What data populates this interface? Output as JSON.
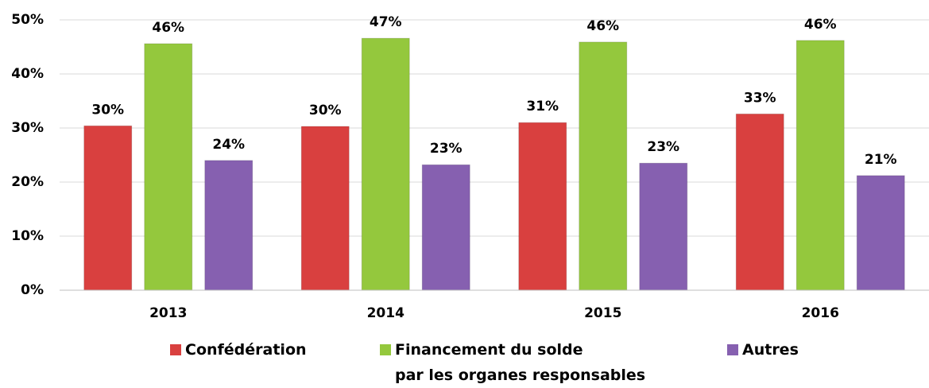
{
  "chart_data": {
    "type": "bar",
    "categories": [
      "2013",
      "2014",
      "2015",
      "2016"
    ],
    "series": [
      {
        "name": "Confédération",
        "color": "#d9403f",
        "values": [
          30.4,
          30.3,
          31.0,
          32.6
        ],
        "value_labels": [
          "30%",
          "30%",
          "31%",
          "33%"
        ]
      },
      {
        "name": "Financement du solde\npar les organes responsables",
        "color": "#94c83d",
        "values": [
          45.6,
          46.6,
          45.9,
          46.2
        ],
        "value_labels": [
          "46%",
          "47%",
          "46%",
          "46%"
        ]
      },
      {
        "name": "Autres",
        "color": "#8660b0",
        "values": [
          24.0,
          23.2,
          23.5,
          21.2
        ],
        "value_labels": [
          "24%",
          "23%",
          "23%",
          "21%"
        ]
      }
    ],
    "ylim": [
      0,
      50
    ],
    "yticks": [
      {
        "value": 0,
        "label": "0%"
      },
      {
        "value": 10,
        "label": "10%"
      },
      {
        "value": 20,
        "label": "20%"
      },
      {
        "value": 30,
        "label": "30%"
      },
      {
        "value": 40,
        "label": "40%"
      },
      {
        "value": 50,
        "label": "50%"
      }
    ],
    "grid": true,
    "legend": "bottom"
  }
}
